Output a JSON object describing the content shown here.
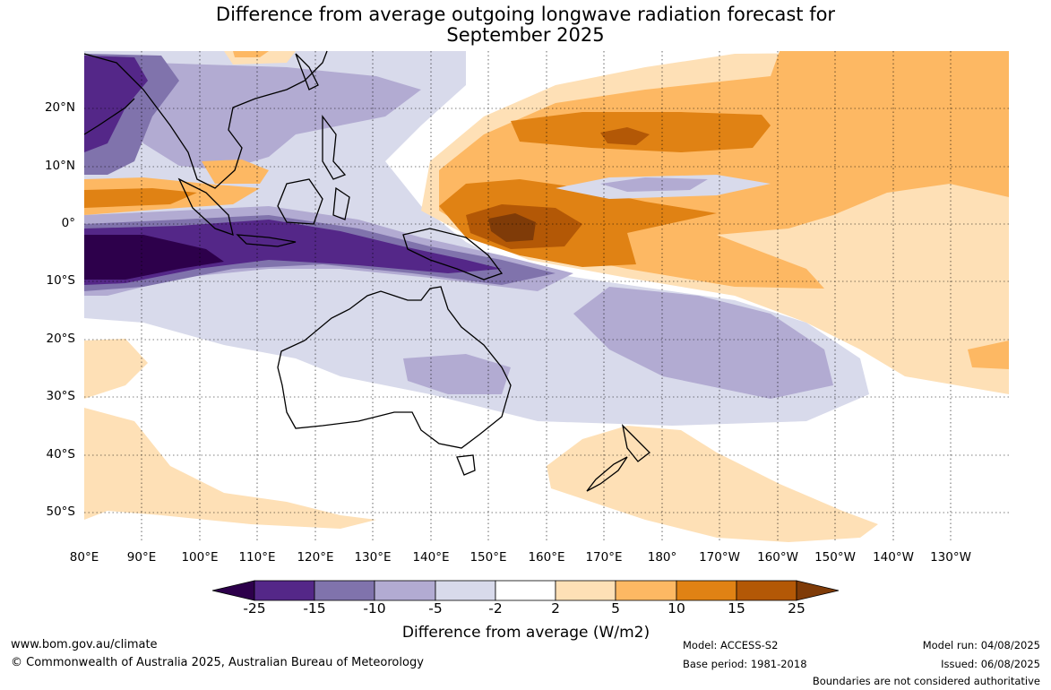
{
  "title": {
    "line1": "Difference from average outgoing longwave radiation forecast for",
    "line2": "September 2025"
  },
  "map": {
    "lat_labels": [
      "20°N",
      "10°N",
      "0°",
      "10°S",
      "20°S",
      "30°S",
      "40°S",
      "50°S"
    ],
    "lon_labels": [
      "80°E",
      "90°E",
      "100°E",
      "110°E",
      "120°E",
      "130°E",
      "140°E",
      "150°E",
      "160°E",
      "170°E",
      "180°",
      "170°W",
      "160°W",
      "150°W",
      "140°W",
      "130°W"
    ]
  },
  "colorbar": {
    "ticks": [
      "-25",
      "-15",
      "-10",
      "-5",
      "-2",
      "2",
      "5",
      "10",
      "15",
      "25"
    ],
    "colors": [
      "#2d004b",
      "#542788",
      "#8073ac",
      "#b2abd2",
      "#d8daeb",
      "#ffffff",
      "#fee0b6",
      "#fdb863",
      "#e08214",
      "#b35806",
      "#7f3b08"
    ],
    "label": "Difference from average (W/m2)"
  },
  "footer": {
    "url": "www.bom.gov.au/climate",
    "copyright": "© Commonwealth of Australia 2025, Australian Bureau of Meteorology",
    "model": "Model: ACCESS-S2",
    "base_period": "Base period: 1981-2018",
    "model_run": "Model run: 04/08/2025",
    "issued": "Issued: 06/08/2025",
    "disclaimer": "Boundaries are not considered authoritative"
  }
}
